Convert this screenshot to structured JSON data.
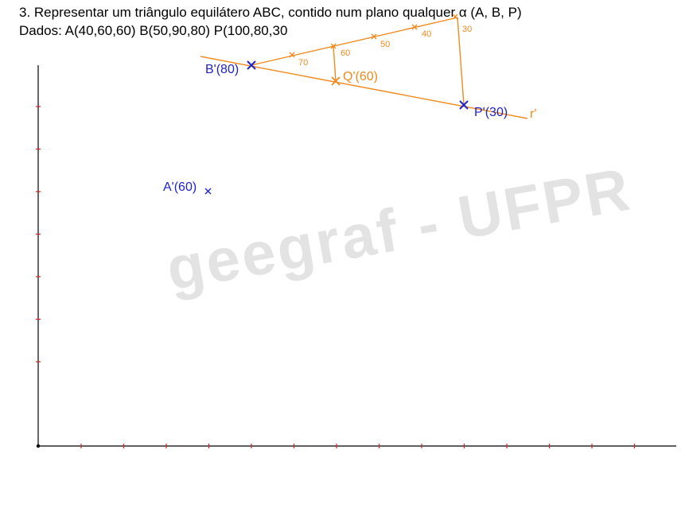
{
  "header": {
    "line1": "3. Representar um triângulo equilátero ABC, contido num plano qualquer α (A, B, P)",
    "line2": "Dados: A(40,60,60)  B(50,90,80)  P(100,80,30"
  },
  "watermark": {
    "text": "geegraf - UFPR"
  },
  "labels": {
    "b_prime": "B'(80)",
    "q_prime": "Q'(60)",
    "p_prime": "P'(30)",
    "a_prime": "A'(60)",
    "r_prime": "r'"
  },
  "scale_ticks": [
    "70",
    "60",
    "50",
    "40",
    "30"
  ],
  "colors": {
    "blue": "#1f23c8",
    "orange": "#f08a1e",
    "axis": "#000000",
    "axis_tick": "#e02020",
    "watermark": "#e3e3e3"
  }
}
